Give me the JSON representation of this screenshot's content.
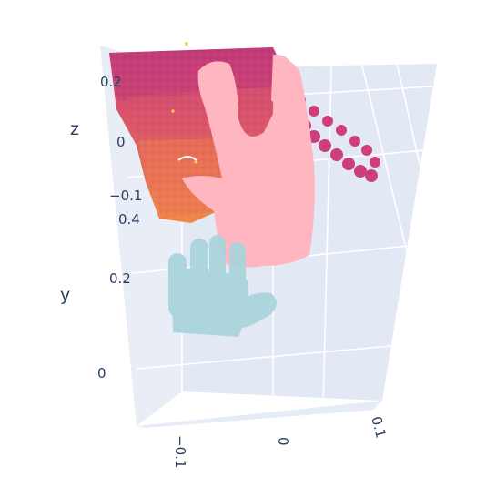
{
  "chart_data": {
    "type": "scatter3d",
    "axes": {
      "x": {
        "label": "",
        "ticks": [
          "−0.1",
          "0",
          "0.1"
        ]
      },
      "y": {
        "label": "y",
        "ticks": [
          "0",
          "0.2",
          "0.4"
        ]
      },
      "z": {
        "label": "z",
        "ticks": [
          "−0.1",
          "0",
          "0.2"
        ]
      }
    },
    "series": [
      {
        "kind": "point-cloud-hand",
        "colorscale": "plasma",
        "pose": "open-dorsal"
      },
      {
        "kind": "mesh-hand",
        "color": "#ffb6c1",
        "pose": "pointing"
      },
      {
        "kind": "mesh-hand",
        "color": "#a9d4dc",
        "pose": "open-small"
      }
    ],
    "colors": {
      "scene_bg": "#e5ecf6",
      "wall_left": "#e8edf6",
      "wall_back": "#e3e9f4",
      "floor": "#e6ecf5",
      "pink_hand": "#ffb6c1",
      "blue_hand": "#a9d4dc",
      "cloud_dark": "#c53a7a",
      "cloud_mid": "#d9576b",
      "cloud_warm": "#ec7a4f"
    }
  }
}
